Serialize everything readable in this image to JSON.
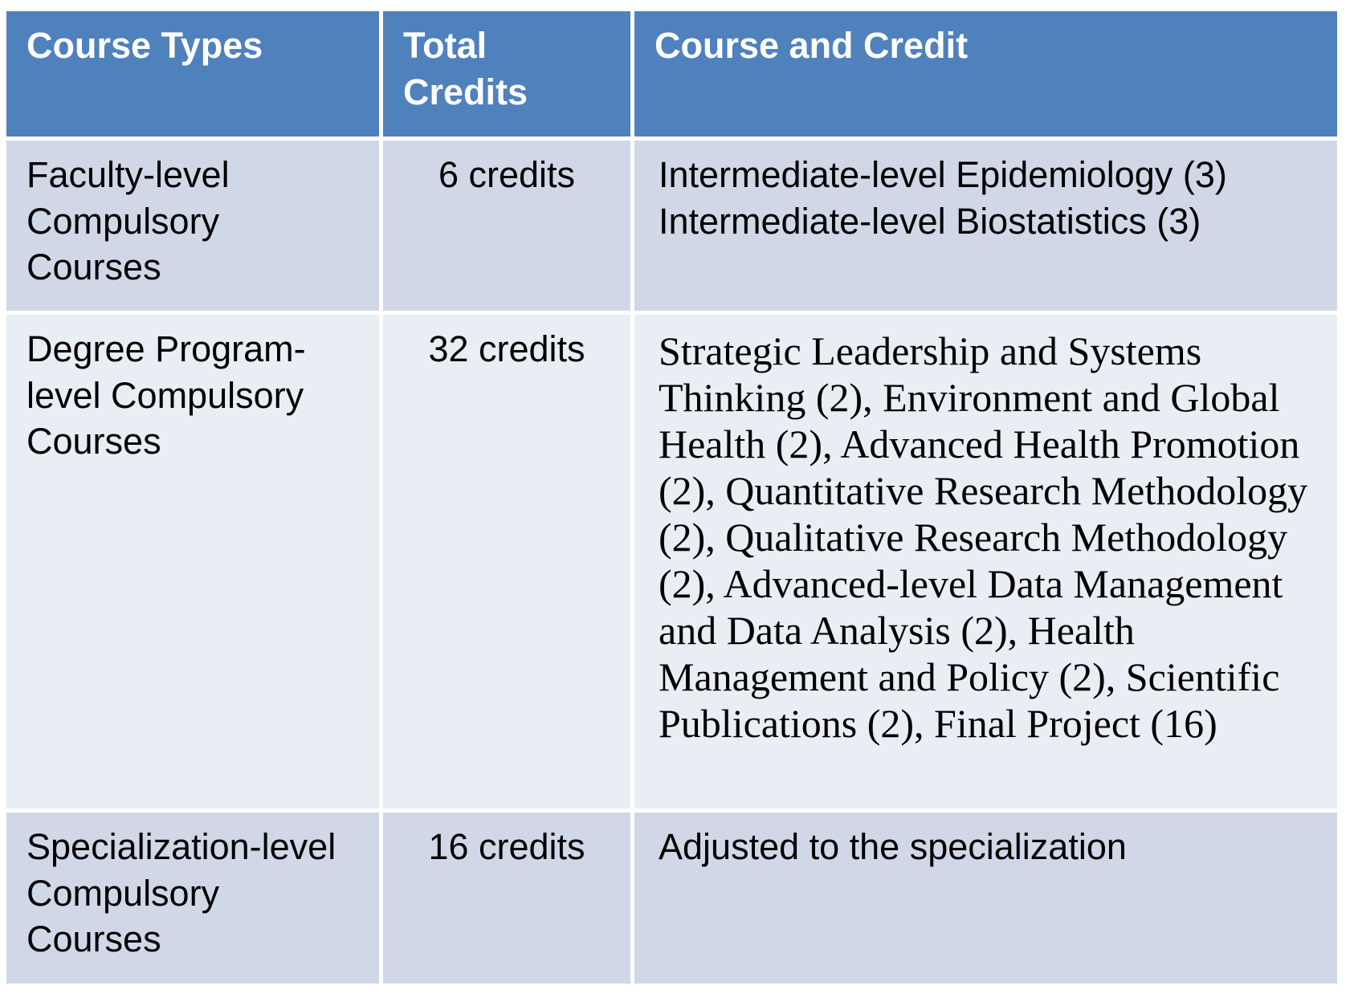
{
  "table": {
    "columns": [
      {
        "label": "Course Types"
      },
      {
        "label": "Total\nCredits"
      },
      {
        "label": "Course and Credit"
      }
    ],
    "rows": [
      {
        "course_type": "Faculty-level\nCompulsory\nCourses",
        "total_credits": "6 credits",
        "course_and_credit": "Intermediate-level Epidemiology (3)\nIntermediate-level Biostatistics (3)"
      },
      {
        "course_type": "Degree Program-\nlevel Compulsory\nCourses",
        "total_credits": "32 credits",
        "course_and_credit": "Strategic Leadership and Systems Thinking (2), Environment and Global Health (2), Advanced Health Promotion (2), Quantitative Research Methodology (2), Qualitative Research Methodology (2), Advanced-level Data Management and Data Analysis (2), Health Management and Policy (2), Scientific Publications (2), Final Project (16)"
      },
      {
        "course_type": "Specialization-level\nCompulsory\nCourses",
        "total_credits": "16 credits",
        "course_and_credit": "Adjusted to the specialization"
      }
    ],
    "colors": {
      "header_bg": "#4F81BD",
      "header_text": "#FFFFFF",
      "row_band_dark": "#D0D8E8",
      "row_band_light": "#E9EDF4",
      "body_text": "#000000",
      "grid_gap": "#FFFFFF"
    }
  }
}
